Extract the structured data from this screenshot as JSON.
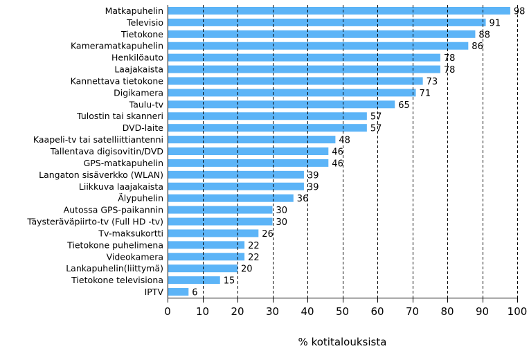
{
  "chart_data": {
    "type": "bar",
    "orientation": "horizontal",
    "categories": [
      "Matkapuhelin",
      "Televisio",
      "Tietokone",
      "Kameramatkapuhelin",
      "Henkilöauto",
      "Laajakaista",
      "Kannettava tietokone",
      "Digikamera",
      "Taulu-tv",
      "Tulostin tai skanneri",
      "DVD-laite",
      "Kaapeli-tv tai satelliittiantenni",
      "Tallentava digisovitin/DVD",
      "GPS-matkapuhelin",
      "Langaton sisäverkko (WLAN)",
      "Liikkuva laajakaista",
      "Älypuhelin",
      "Autossa GPS-paikannin",
      "Täysteräväpiirto-tv (Full HD -tv)",
      "Tv-maksukortti",
      "Tietokone puhelimena",
      "Videokamera",
      "Lankapuhelin(liittymä)",
      "Tietokone televisiona",
      "IPTV"
    ],
    "values": [
      98,
      91,
      88,
      86,
      78,
      78,
      73,
      71,
      65,
      57,
      57,
      48,
      46,
      46,
      39,
      39,
      36,
      30,
      30,
      26,
      22,
      22,
      20,
      15,
      6
    ],
    "xlabel": "% kotitalouksista",
    "xlim": [
      0,
      100
    ],
    "xticks": [
      0,
      10,
      20,
      30,
      40,
      50,
      60,
      70,
      80,
      90,
      100
    ],
    "grid": "vertical dashed",
    "bar_color": "#5cb4f7"
  }
}
